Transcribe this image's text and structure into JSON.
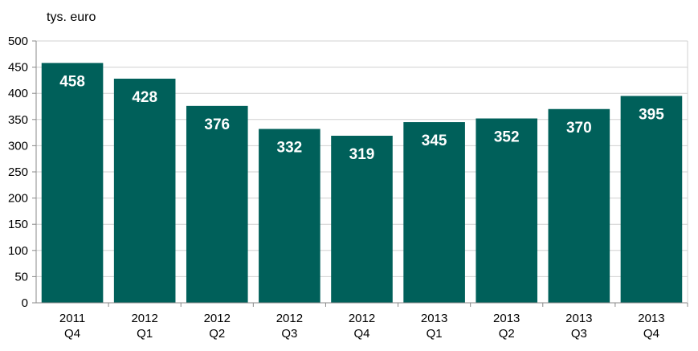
{
  "chart_data": {
    "type": "bar",
    "unit_label": "tys. euro",
    "categories": [
      [
        "2011",
        "Q4"
      ],
      [
        "2012",
        "Q1"
      ],
      [
        "2012",
        "Q2"
      ],
      [
        "2012",
        "Q3"
      ],
      [
        "2012",
        "Q4"
      ],
      [
        "2013",
        "Q1"
      ],
      [
        "2013",
        "Q2"
      ],
      [
        "2013",
        "Q3"
      ],
      [
        "2013",
        "Q4"
      ]
    ],
    "values": [
      458,
      428,
      376,
      332,
      319,
      345,
      352,
      370,
      395
    ],
    "data_labels": [
      "458",
      "428",
      "376",
      "332",
      "319",
      "345",
      "352",
      "370",
      "395"
    ],
    "ylim": [
      0,
      500
    ],
    "yticks": [
      "0",
      "50",
      "100",
      "150",
      "200",
      "250",
      "300",
      "350",
      "400",
      "450",
      "500"
    ],
    "grid": true,
    "bar_color": "#00605a",
    "grid_color": "#d0d0d0",
    "label_color": "#ffffff"
  }
}
